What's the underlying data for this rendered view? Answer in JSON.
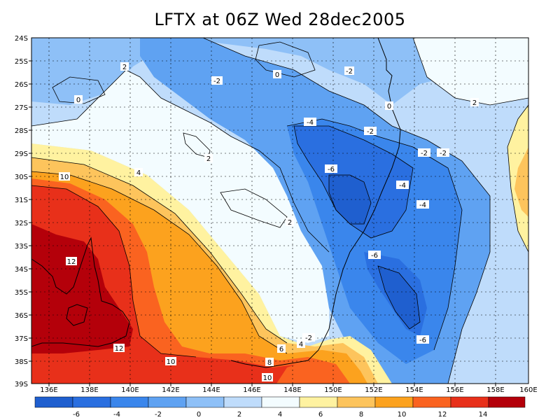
{
  "title": "LFTX at 06Z Wed 28dec2005",
  "lon_labels": [
    "136E",
    "138E",
    "140E",
    "142E",
    "144E",
    "146E",
    "148E",
    "150E",
    "152E",
    "154E",
    "156E",
    "158E",
    "160E"
  ],
  "lat_labels": [
    "24S",
    "25S",
    "26S",
    "27S",
    "28S",
    "29S",
    "30S",
    "31S",
    "32S",
    "33S",
    "34S",
    "35S",
    "36S",
    "37S",
    "38S",
    "39S"
  ],
  "colorbar": {
    "colors": [
      "#1f5fcf",
      "#2a6fe0",
      "#3a86ec",
      "#5fa2f2",
      "#8ec0f7",
      "#bfdcfb",
      "#f3fcff",
      "#fff2a0",
      "#fdc45c",
      "#fca21e",
      "#fa6320",
      "#e8301a",
      "#b4000a"
    ],
    "labels": [
      "-6",
      "-4",
      "-2",
      "0",
      "2",
      "4",
      "6",
      "8",
      "10",
      "12",
      "14"
    ]
  },
  "contour_labels": [
    "-2",
    "0",
    "2",
    "0",
    "2",
    "-2",
    "-4",
    "-2",
    "-6",
    "-4",
    "-2",
    "-4",
    "2",
    "-6",
    "-6",
    "-2",
    "4",
    "6",
    "8",
    "10",
    "12",
    "10",
    "12",
    "10",
    "4",
    "-2",
    "2",
    "0"
  ]
}
